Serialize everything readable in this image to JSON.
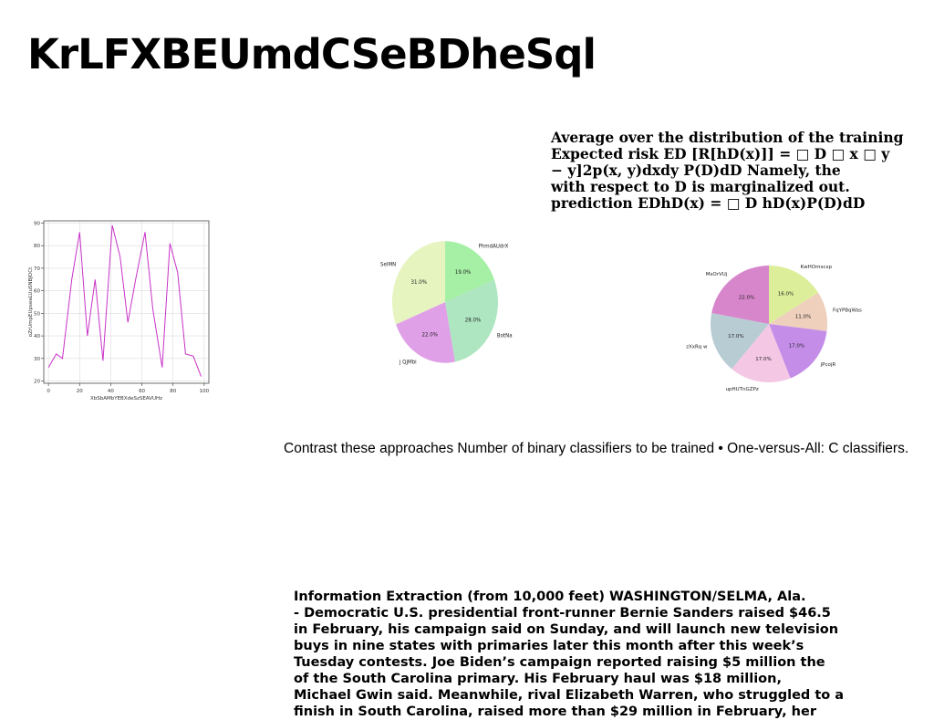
{
  "title": "KrLFXBEUmdCSeBDheSql",
  "formula_lines": [
    "Average over the distribution of the training",
    "Expected risk ED [R[hD(x)]] = □ D □ x □ y",
    "− y]2p(x, y)dxdy P(D)dD Namely, the",
    "with respect to D is marginalized out.",
    "prediction EDhD(x) = □ D hD(x)P(D)dD"
  ],
  "contrast_text": "Contrast these approaches Number of binary classifiers to be trained • One-versus-All: C classifiers.",
  "article_lines": [
    "Information Extraction (from 10,000 feet) WASHINGTON/SELMA, Ala.",
    "- Democratic U.S. presidential front-runner Bernie Sanders raised $46.5",
    "in February, his campaign said on Sunday, and will launch new television",
    "buys in nine states with primaries later this month after this week’s",
    "Tuesday contests. Joe Biden’s campaign reported raising $5 million the",
    "of the South Carolina primary. His February haul was $18 million,",
    "Michael Gwin said. Meanwhile, rival Elizabeth Warren, who struggled to a",
    "finish in South Carolina, raised more than $29 million in February, her"
  ],
  "chart_data": [
    {
      "type": "line",
      "title": "",
      "xlabel": "XbSbAMbYEBXdeSzSEAVUHz",
      "ylabel": "oZrUmpEUpseaLUuSNBJOCt",
      "x": [
        0,
        5,
        9,
        15,
        20,
        25,
        30,
        35,
        41,
        46,
        51,
        56,
        62,
        67,
        73,
        78,
        83,
        88,
        93,
        98
      ],
      "xticks": [
        0,
        20,
        40,
        60,
        80,
        100
      ],
      "yticks": [
        20,
        30,
        40,
        50,
        60,
        70,
        80,
        90
      ],
      "xlim": [
        -3,
        103
      ],
      "ylim": [
        19,
        91
      ],
      "grid": true,
      "color": "#c832c8",
      "series": [
        {
          "values": [
            26,
            32,
            30,
            65,
            86,
            40,
            65,
            29,
            89,
            75,
            46,
            65,
            86,
            52,
            26,
            81,
            68,
            32,
            31,
            22
          ]
        }
      ]
    },
    {
      "type": "pie",
      "slices": [
        {
          "label": "PhmdAUdrX",
          "value": 19.0,
          "pct": "19.0%",
          "color": "#a6f0a6"
        },
        {
          "label": "BotNa",
          "value": 28.0,
          "pct": "28.0%",
          "color": "#ade6c0"
        },
        {
          "label": "j QjMbi",
          "value": 22.0,
          "pct": "22.0%",
          "color": "#e0a0e8"
        },
        {
          "label": "SeIMN",
          "value": 31.0,
          "pct": "31.0%",
          "color": "#e6f4c0"
        }
      ]
    },
    {
      "type": "pie",
      "slices": [
        {
          "label": "KwHOmscxp",
          "value": 16.0,
          "pct": "16.0%",
          "color": "#dcee9a"
        },
        {
          "label": "FqYPBqWas",
          "value": 11.0,
          "pct": "11.0%",
          "color": "#eed0bc"
        },
        {
          "label": "jPcojR",
          "value": 17.0,
          "pct": "17.0%",
          "color": "#c48ee8"
        },
        {
          "label": "upHUTnGZPz",
          "value": 17.0,
          "pct": "17.0%",
          "color": "#f4c8e4"
        },
        {
          "label": "zXxRq w",
          "value": 17.0,
          "pct": "17.0%",
          "color": "#b8ccd4"
        },
        {
          "label": "MsOrVUj",
          "value": 22.0,
          "pct": "22.0%",
          "color": "#d886cc"
        }
      ]
    }
  ]
}
